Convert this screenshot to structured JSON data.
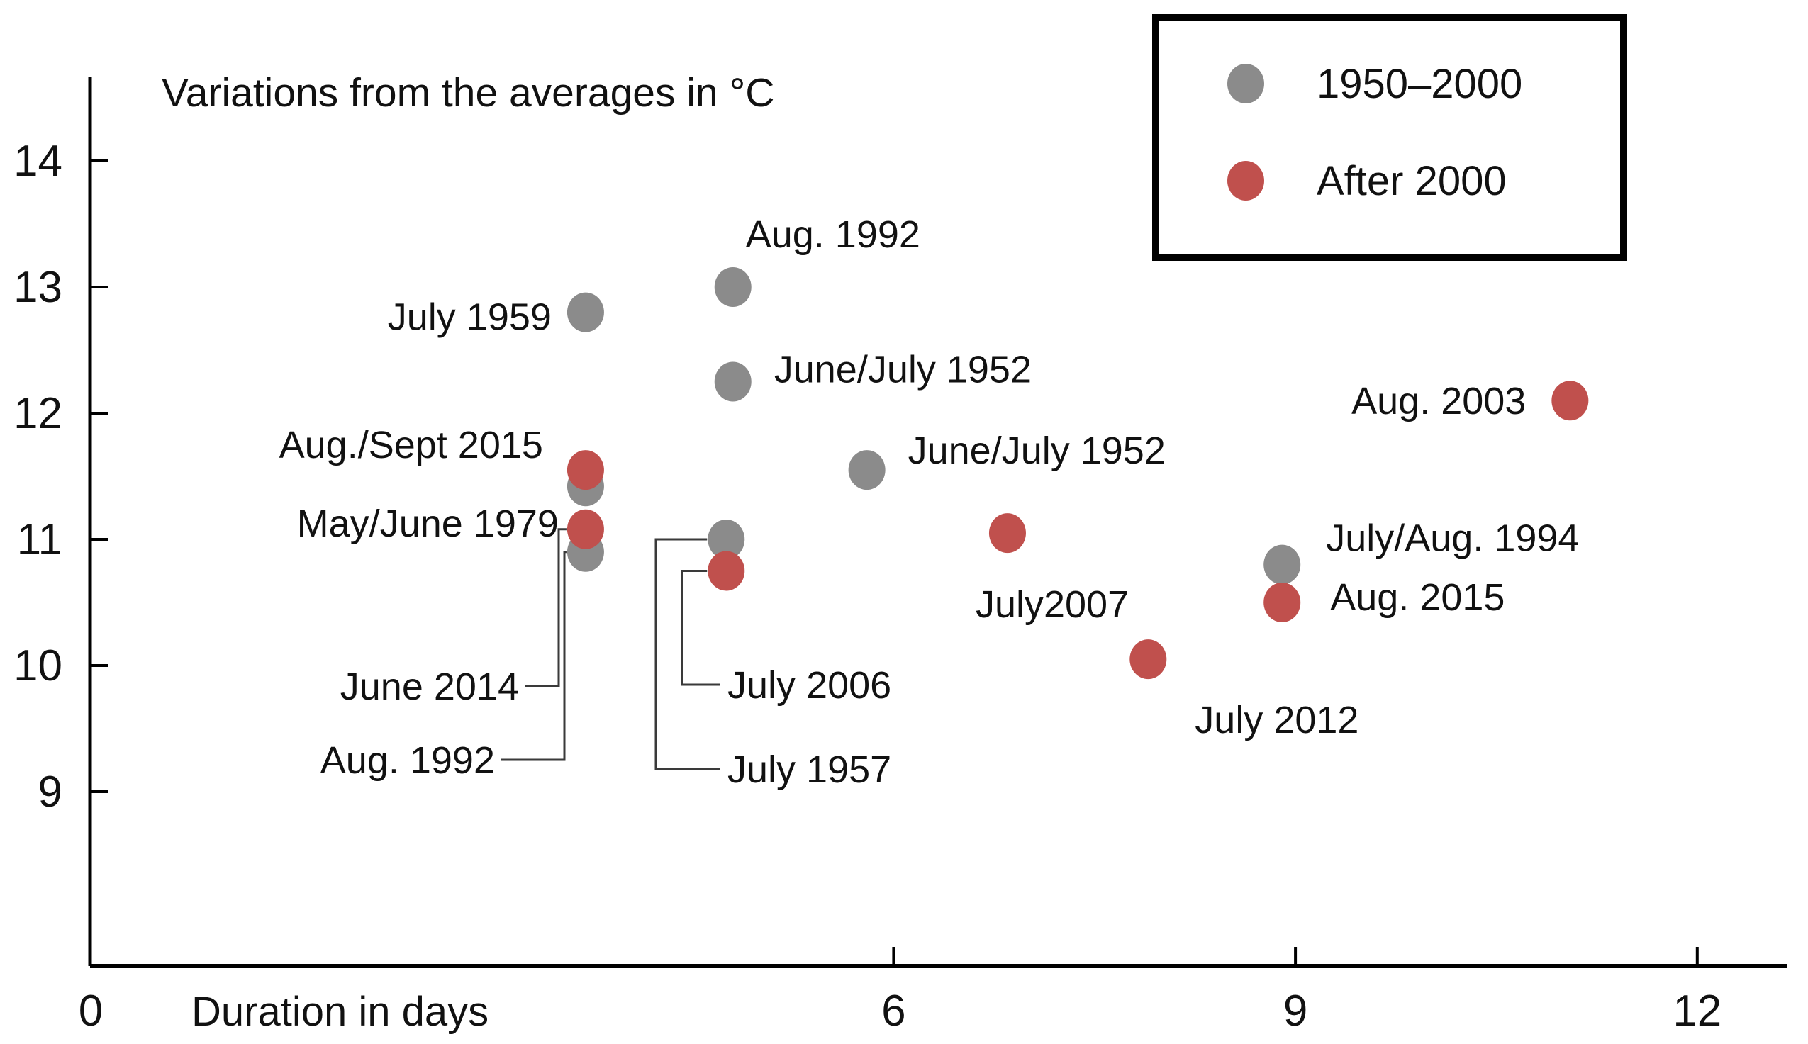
{
  "title": "Variations from the averages in °C",
  "x_axis": {
    "label": "Duration in days",
    "ticks": [
      0,
      6,
      9,
      12
    ],
    "min": 0,
    "max": 12.8
  },
  "y_axis": {
    "ticks": [
      14,
      13,
      12,
      11,
      10,
      9
    ],
    "min": 8.3,
    "max": 14.6
  },
  "legend": {
    "position": "top-right",
    "items": [
      {
        "label": "1950–2000",
        "color": "#8B8B8B"
      },
      {
        "label": "After 2000",
        "color": "#C0504D"
      }
    ]
  },
  "colors": {
    "gray": "#8B8B8B",
    "red": "#C0504D",
    "axis": "#000000",
    "text": "#111111",
    "leader": "#3a3a3a",
    "background": "#ffffff"
  },
  "chart_data": {
    "type": "scatter",
    "title": "Variations from the averages in °C",
    "xlabel": "Duration in days",
    "ylabel": "",
    "xlim": [
      0,
      12.8
    ],
    "ylim": [
      8.3,
      14.6
    ],
    "grid": false,
    "legend_position": "top-right",
    "series": [
      {
        "name": "1950–2000",
        "color_key": "gray",
        "points": [
          {
            "label": "July 1959",
            "x": 3.7,
            "y": 12.8,
            "placement": "end",
            "dx": -48,
            "dy": 6
          },
          {
            "label": "Aug. 1992",
            "x": 4.8,
            "y": 13.0,
            "placement": "start",
            "dx": 18,
            "dy": -75
          },
          {
            "label": "June/July 1952",
            "x": 4.8,
            "y": 12.25,
            "placement": "start",
            "dx": 58,
            "dy": -18
          },
          {
            "label": "May/June 1979",
            "x": 3.7,
            "y": 11.42,
            "placement": "end",
            "dx": -38,
            "dy": 52
          },
          {
            "label": "Aug. 1992",
            "x": 3.7,
            "y": 10.9,
            "placement": "leader",
            "leader": "A2"
          },
          {
            "label": "July 1957",
            "x": 4.75,
            "y": 11.0,
            "placement": "leader",
            "leader": "Bout"
          },
          {
            "label": "June/July 1952",
            "x": 5.8,
            "y": 11.55,
            "placement": "start",
            "dx": 58,
            "dy": -28
          },
          {
            "label": "July/Aug. 1994",
            "x": 8.9,
            "y": 10.8,
            "placement": "start",
            "dx": 62,
            "dy": -38
          }
        ]
      },
      {
        "name": "After 2000",
        "color_key": "red",
        "points": [
          {
            "label": "Aug./Sept 2015",
            "x": 3.7,
            "y": 11.55,
            "placement": "end",
            "dx": -60,
            "dy": -36
          },
          {
            "label": "June 2014",
            "x": 3.7,
            "y": 11.08,
            "placement": "leader",
            "leader": "A1"
          },
          {
            "label": "July 2006",
            "x": 4.75,
            "y": 10.75,
            "placement": "leader",
            "leader": "Bin"
          },
          {
            "label": "July2007",
            "x": 6.85,
            "y": 11.05,
            "placement": "start",
            "dx": -45,
            "dy": 100
          },
          {
            "label": "July 2012",
            "x": 7.9,
            "y": 10.05,
            "placement": "start",
            "dx": 66,
            "dy": 85
          },
          {
            "label": "Aug. 2015",
            "x": 8.9,
            "y": 10.5,
            "placement": "start",
            "dx": 68,
            "dy": -8
          },
          {
            "label": "Aug. 2003",
            "x": 11.05,
            "y": 12.1,
            "placement": "end",
            "dx": -62,
            "dy": 0
          }
        ]
      }
    ]
  }
}
